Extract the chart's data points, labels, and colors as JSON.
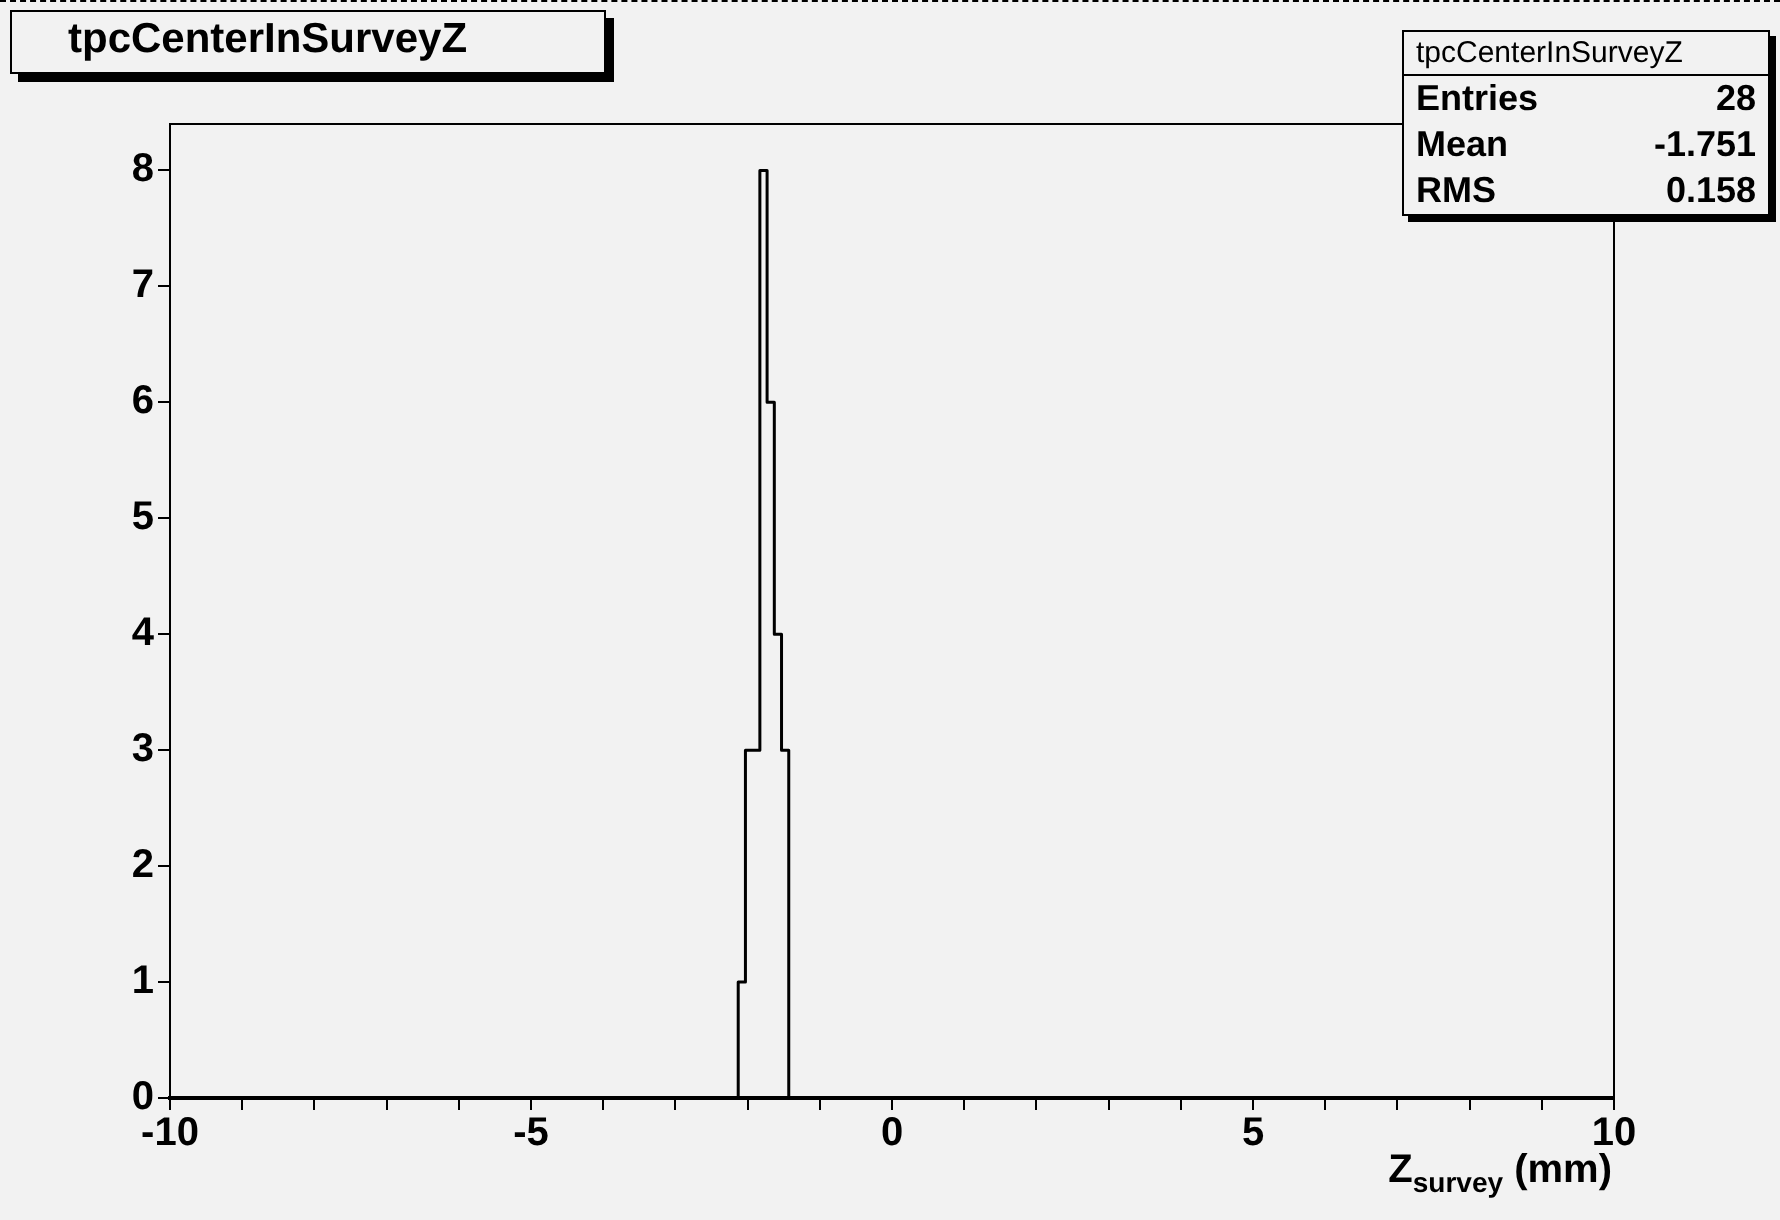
{
  "chart_data": {
    "type": "histogram",
    "title": "tpcCenterInSurveyZ",
    "xlabel": "Z$_{survey}$  (mm)",
    "bins": [
      -2.13,
      -2.03,
      -1.93,
      -1.83,
      -1.73,
      -1.63,
      -1.53,
      -1.43
    ],
    "values": [
      1,
      3,
      3,
      8,
      6,
      4,
      3
    ],
    "color": "#000000",
    "xlim": [
      -10,
      10
    ],
    "xticks": [
      -10,
      {
        "value": -9,
        "label": null
      },
      {
        "value": -8,
        "label": null
      },
      {
        "value": -7,
        "label": null
      },
      {
        "value": -6,
        "label": null
      },
      -5,
      {
        "value": -4,
        "label": null
      },
      {
        "value": -3,
        "label": null
      },
      {
        "value": -2,
        "label": null
      },
      {
        "value": -1,
        "label": null
      },
      0,
      {
        "value": 1,
        "label": null
      },
      {
        "value": 2,
        "label": null
      },
      {
        "value": 3,
        "label": null
      },
      {
        "value": 4,
        "label": null
      },
      5,
      {
        "value": 6,
        "label": null
      },
      {
        "value": 7,
        "label": null
      },
      {
        "value": 8,
        "label": null
      },
      {
        "value": 9,
        "label": null
      },
      10
    ],
    "ylim": [
      0,
      8.4
    ],
    "yticks": [
      0,
      1,
      2,
      3,
      4,
      5,
      6,
      7,
      8
    ],
    "annotations": [
      "tpcCenterInSurveyZ",
      "Entries",
      "28",
      "Mean",
      "-1.751",
      "RMS",
      "0.158"
    ],
    "grid": false,
    "legend": false
  }
}
